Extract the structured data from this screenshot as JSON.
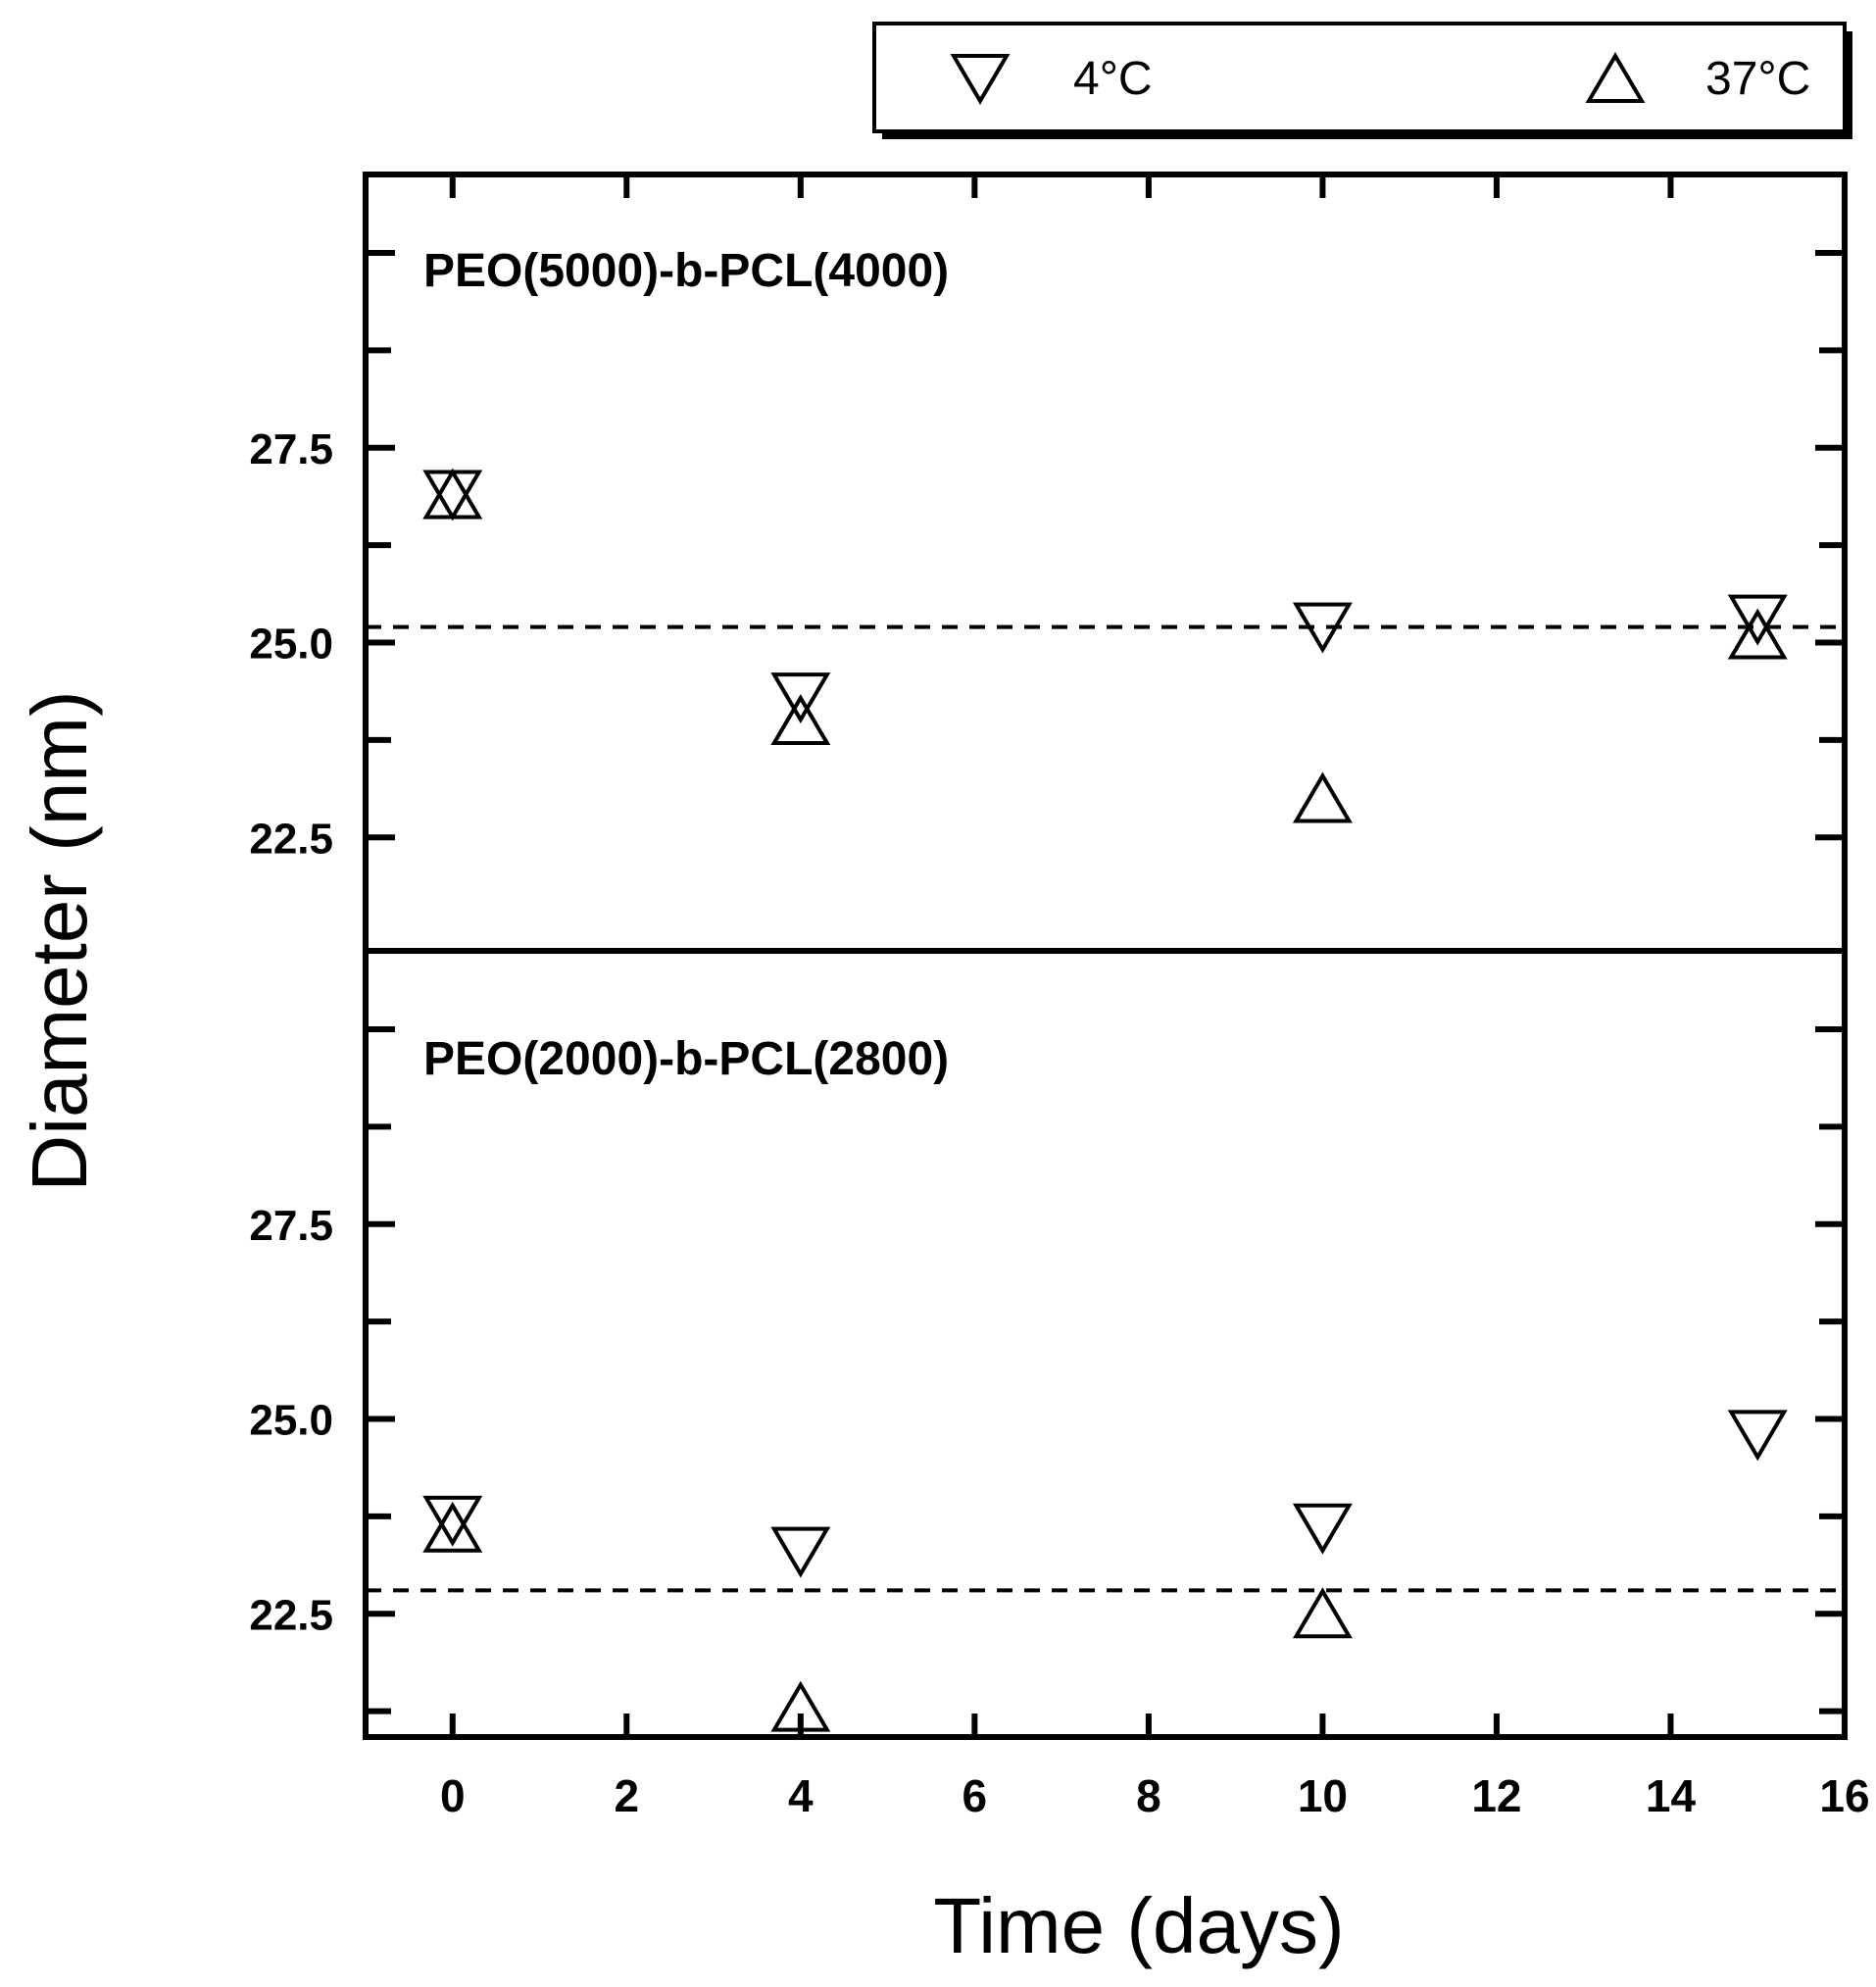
{
  "chart_data": {
    "type": "scatter",
    "xlabel": "Time (days)",
    "ylabel": "Diameter (nm)",
    "xlim": [
      -1,
      16
    ],
    "x_ticks": [
      "0",
      "2",
      "4",
      "6",
      "8",
      "10",
      "12",
      "14",
      "16"
    ],
    "legend": {
      "placement": "top, outside plot",
      "entries": [
        {
          "label": "4°C",
          "marker": "triangle-down"
        },
        {
          "label": "37°C",
          "marker": "triangle-up"
        }
      ]
    },
    "panels": [
      {
        "label": "PEO(5000)-b-PCL(4000)",
        "ylim": [
          20.0,
          30.0
        ],
        "y_ticks": [
          "27.5",
          "25.0",
          "22.5"
        ],
        "reference_line": 25.2,
        "series": [
          {
            "name": "4°C",
            "marker": "triangle-down",
            "x": [
              0,
              4,
              10,
              15
            ],
            "y": [
              26.9,
              24.3,
              25.2,
              25.3
            ]
          },
          {
            "name": "37°C",
            "marker": "triangle-up",
            "x": [
              0,
              4,
              10,
              15
            ],
            "y": [
              26.9,
              24.0,
              23.0,
              25.1
            ]
          }
        ]
      },
      {
        "label": "PEO(2000)-b-PCL(2800)",
        "ylim": [
          20.0,
          30.0
        ],
        "y_ticks": [
          "27.5",
          "25.0",
          "22.5"
        ],
        "reference_line": 22.8,
        "series": [
          {
            "name": "4°C",
            "marker": "triangle-down",
            "x": [
              0,
              4,
              10,
              15
            ],
            "y": [
              23.7,
              23.3,
              23.6,
              24.8
            ]
          },
          {
            "name": "37°C",
            "marker": "triangle-up",
            "x": [
              0,
              4,
              10,
              15
            ],
            "y": [
              23.6,
              21.3,
              22.5,
              null
            ]
          }
        ]
      }
    ]
  }
}
